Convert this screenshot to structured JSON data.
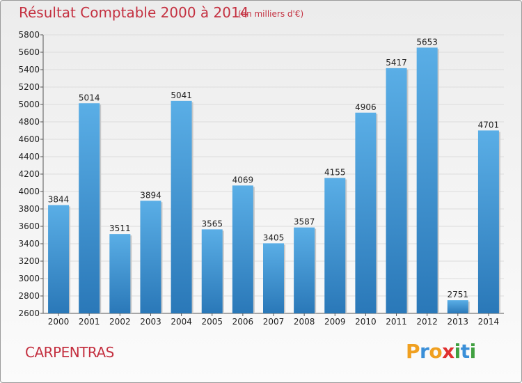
{
  "header": {
    "title": "Résultat Comptable 2000 à 2014",
    "subtitle": "(en milliers d'€)"
  },
  "footer": {
    "city": "CARPENTRAS",
    "brand": "Proxiti",
    "brand_letters": [
      {
        "ch": "P",
        "color": "#f0a020"
      },
      {
        "ch": "r",
        "color": "#3a8fd8"
      },
      {
        "ch": "o",
        "color": "#f0a020"
      },
      {
        "ch": "x",
        "color": "#e03030"
      },
      {
        "ch": "i",
        "color": "#40a040"
      },
      {
        "ch": "t",
        "color": "#3a8fd8"
      },
      {
        "ch": "i",
        "color": "#40a040"
      }
    ]
  },
  "colors": {
    "title": "#c43040",
    "bar_light": "#5aaee6",
    "bar_dark": "#2a78b8",
    "bar_shadow": "#c8c8c8"
  },
  "chart_data": {
    "type": "bar",
    "title": "Résultat Comptable 2000 à 2014",
    "subtitle": "(en milliers d'€)",
    "categories": [
      "2000",
      "2001",
      "2002",
      "2003",
      "2004",
      "2005",
      "2006",
      "2007",
      "2008",
      "2009",
      "2010",
      "2011",
      "2012",
      "2013",
      "2014"
    ],
    "values": [
      3844,
      5014,
      3511,
      3894,
      5041,
      3565,
      4069,
      3405,
      3587,
      4155,
      4906,
      5417,
      5653,
      2751,
      4701
    ],
    "ylim": [
      2600,
      5800
    ],
    "yticks": [
      2600,
      2800,
      3000,
      3200,
      3400,
      3600,
      3800,
      4000,
      4200,
      4400,
      4600,
      4800,
      5000,
      5200,
      5400,
      5600,
      5800
    ],
    "grid": true,
    "xlabel": "",
    "ylabel": ""
  }
}
